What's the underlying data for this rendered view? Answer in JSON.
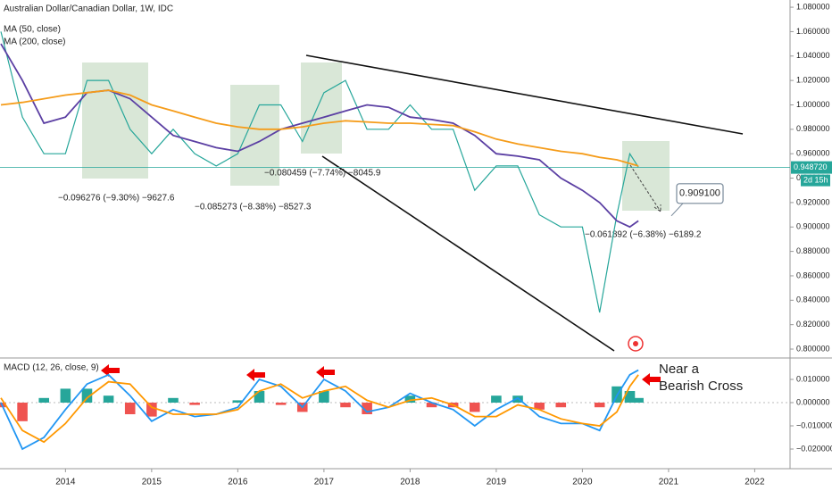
{
  "chart_data": [
    {
      "type": "line",
      "title": "Australian Dollar/Canadian Dollar, 1W, IDC",
      "x": [
        2013.25,
        2013.5,
        2013.75,
        2014.0,
        2014.25,
        2014.5,
        2014.75,
        2015.0,
        2015.25,
        2015.5,
        2015.75,
        2016.0,
        2016.25,
        2016.5,
        2016.75,
        2017.0,
        2017.25,
        2017.5,
        2017.75,
        2018.0,
        2018.25,
        2018.5,
        2018.75,
        2019.0,
        2019.25,
        2019.5,
        2019.75,
        2020.0,
        2020.2,
        2020.4,
        2020.55,
        2020.65
      ],
      "series": [
        {
          "color": "#26a69a",
          "values": [
            1.06,
            0.99,
            0.96,
            0.96,
            1.02,
            1.02,
            0.98,
            0.96,
            0.98,
            0.96,
            0.95,
            0.96,
            1.0,
            1.0,
            0.97,
            1.01,
            1.02,
            0.98,
            0.98,
            1.0,
            0.98,
            0.98,
            0.93,
            0.95,
            0.95,
            0.91,
            0.9,
            0.9,
            0.83,
            0.91,
            0.96,
            0.949
          ]
        },
        {
          "name": "MA (50, close)",
          "color": "#5b3fa3",
          "values": [
            1.05,
            1.02,
            0.985,
            0.99,
            1.01,
            1.012,
            1.005,
            0.99,
            0.975,
            0.97,
            0.965,
            0.962,
            0.97,
            0.98,
            0.985,
            0.99,
            0.995,
            1.0,
            0.998,
            0.99,
            0.988,
            0.985,
            0.975,
            0.96,
            0.958,
            0.955,
            0.94,
            0.93,
            0.92,
            0.905,
            0.9,
            0.905
          ]
        },
        {
          "name": "MA (200, close)",
          "color": "#f59c1a",
          "values": [
            1.0,
            1.002,
            1.005,
            1.008,
            1.01,
            1.012,
            1.008,
            1.0,
            0.995,
            0.99,
            0.985,
            0.982,
            0.98,
            0.98,
            0.982,
            0.985,
            0.987,
            0.986,
            0.985,
            0.985,
            0.984,
            0.983,
            0.978,
            0.972,
            0.968,
            0.965,
            0.962,
            0.96,
            0.957,
            0.955,
            0.952,
            0.95
          ]
        }
      ],
      "xlim": [
        2013.24,
        2022.41
      ],
      "ylim": [
        0.7927,
        1.0859
      ],
      "yticks": [
        {
          "value": 0.8,
          "label": "0.800000"
        },
        {
          "value": 0.82,
          "label": "0.820000"
        },
        {
          "value": 0.84,
          "label": "0.840000"
        },
        {
          "value": 0.86,
          "label": "0.860000"
        },
        {
          "value": 0.88,
          "label": "0.880000"
        },
        {
          "value": 0.9,
          "label": "0.900000"
        },
        {
          "value": 0.92,
          "label": "0.920000"
        },
        {
          "value": 0.94,
          "label": "0.940000"
        },
        {
          "value": 0.96,
          "label": "0.960000"
        },
        {
          "value": 0.98,
          "label": "0.980000"
        },
        {
          "value": 1.0,
          "label": "1.000000"
        },
        {
          "value": 1.02,
          "label": "1.020000"
        },
        {
          "value": 1.04,
          "label": "1.040000"
        },
        {
          "value": 1.06,
          "label": "1.060000"
        },
        {
          "value": 1.08,
          "label": "1.080000"
        }
      ],
      "last_price": {
        "value": 0.94872,
        "label": "0.948720"
      },
      "countdown": "2d 15h",
      "annotations": [
        "−0.096276 (−9.30%) −9627.6",
        "−0.085273 (−8.38%) −8527.3",
        "−0.080459 (−7.74%) −8045.9",
        "−0.061892 (−6.38%) −6189.2"
      ],
      "target": {
        "value": 0.9091,
        "label": "0.909100"
      }
    },
    {
      "type": "line",
      "title": "MACD (12, 26, close, 9)",
      "x": [
        2013.25,
        2013.5,
        2013.75,
        2014.0,
        2014.25,
        2014.5,
        2014.75,
        2015.0,
        2015.25,
        2015.5,
        2015.75,
        2016.0,
        2016.25,
        2016.5,
        2016.75,
        2017.0,
        2017.25,
        2017.5,
        2017.75,
        2018.0,
        2018.25,
        2018.5,
        2018.75,
        2019.0,
        2019.25,
        2019.5,
        2019.75,
        2020.0,
        2020.2,
        2020.4,
        2020.55,
        2020.65
      ],
      "series": [
        {
          "type": "bar",
          "color": "#26a69a",
          "negative_color": "#ef5350",
          "values": [
            -0.002,
            -0.008,
            0.002,
            0.006,
            0.006,
            0.003,
            -0.005,
            -0.006,
            0.002,
            -0.001,
            0.0,
            0.001,
            0.005,
            -0.001,
            -0.004,
            0.005,
            -0.002,
            -0.005,
            0.0,
            0.003,
            -0.002,
            -0.002,
            -0.004,
            0.003,
            0.003,
            -0.003,
            -0.002,
            0.0,
            -0.002,
            0.007,
            0.005,
            0.002
          ]
        },
        {
          "color": "#2196f3",
          "values": [
            0.0,
            -0.02,
            -0.015,
            -0.003,
            0.008,
            0.012,
            0.003,
            -0.008,
            -0.003,
            -0.006,
            -0.005,
            -0.002,
            0.01,
            0.007,
            -0.002,
            0.01,
            0.005,
            -0.004,
            -0.002,
            0.004,
            0.0,
            -0.003,
            -0.01,
            -0.003,
            0.002,
            -0.006,
            -0.009,
            -0.009,
            -0.012,
            0.003,
            0.012,
            0.014
          ]
        },
        {
          "color": "#ff9800",
          "values": [
            0.002,
            -0.012,
            -0.017,
            -0.009,
            0.002,
            0.009,
            0.008,
            -0.002,
            -0.005,
            -0.005,
            -0.005,
            -0.003,
            0.005,
            0.008,
            0.002,
            0.005,
            0.007,
            0.001,
            -0.002,
            0.001,
            0.002,
            -0.001,
            -0.006,
            -0.006,
            -0.001,
            -0.003,
            -0.007,
            -0.009,
            -0.01,
            -0.004,
            0.007,
            0.012
          ]
        }
      ],
      "xlim": [
        2013.24,
        2022.41
      ],
      "ylim": [
        -0.02846,
        0.01885
      ],
      "yticks": [
        {
          "value": -0.02,
          "label": "−0.020000"
        },
        {
          "value": -0.01,
          "label": "−0.010000"
        },
        {
          "value": 0.0,
          "label": "0.000000"
        },
        {
          "value": 0.01,
          "label": "0.010000"
        }
      ],
      "xticks": [
        2014,
        2015,
        2016,
        2017,
        2018,
        2019,
        2020,
        2021,
        2022
      ],
      "note": [
        "Near a",
        "Bearish Cross"
      ]
    }
  ]
}
